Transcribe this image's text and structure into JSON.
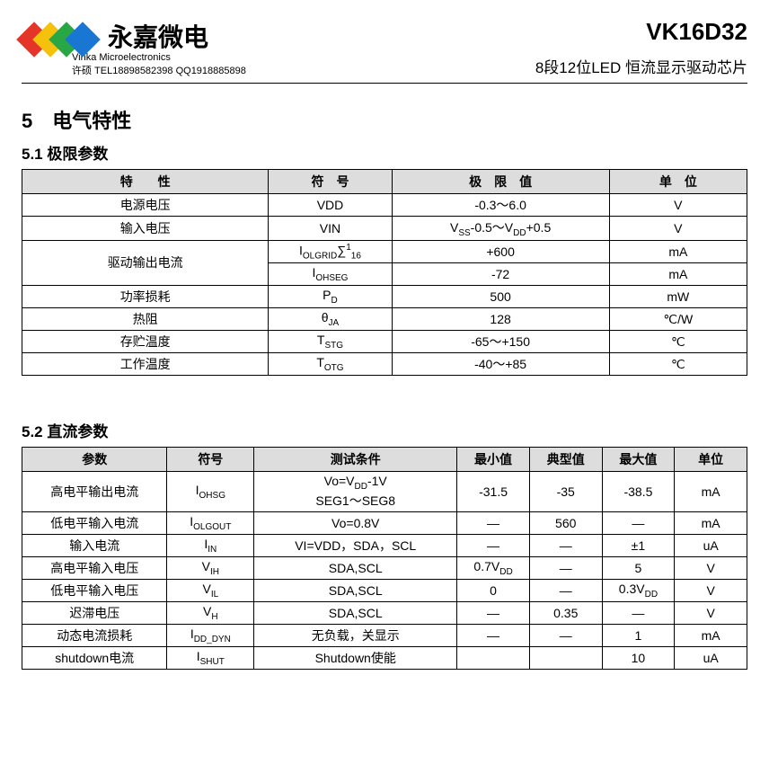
{
  "header": {
    "logo_colors": [
      "#e53528",
      "#f4c20d",
      "#29a745",
      "#1976d2"
    ],
    "company_cn": "永嘉微电",
    "company_en": "Vinka Microelectronics",
    "contact": "许硕 TEL18898582398  QQ1918885898",
    "part_number": "VK16D32",
    "subtitle": "8段12位LED 恒流显示驱动芯片"
  },
  "section5": {
    "title": "5　电气特性",
    "sub51": {
      "title": "5.1 极限参数",
      "table": {
        "headers": [
          "特　　性",
          "符　号",
          "极　限　值",
          "单　位"
        ],
        "header_bg": "#dddddd",
        "rows": [
          {
            "feature": "电源电压",
            "symbol_html": "VDD",
            "limit_html": "-0.3～6.0",
            "unit": "V"
          },
          {
            "feature": "输入电压",
            "symbol_html": "VIN",
            "limit_html": "V<sub>SS</sub>-0.5～V<sub>DD</sub>+0.5",
            "unit": "V"
          },
          {
            "feature": "驱动输出电流",
            "rowspan": 2,
            "cells": [
              {
                "symbol_html": "I<sub>OLGRID</sub>∑<sup>1</sup><sub>16</sub>",
                "limit_html": "+600",
                "unit": "mA"
              },
              {
                "symbol_html": "I<sub>OHSEG</sub>",
                "limit_html": "-72",
                "unit": "mA"
              }
            ]
          },
          {
            "feature": "功率损耗",
            "symbol_html": "P<sub>D</sub>",
            "limit_html": "500",
            "unit": "mW"
          },
          {
            "feature": "热阻",
            "symbol_html": "θ<sub>JA</sub>",
            "limit_html": "128",
            "unit": "℃/W"
          },
          {
            "feature": "存贮温度",
            "symbol_html": "T<sub>STG</sub>",
            "limit_html": "-65～+150",
            "unit": "℃"
          },
          {
            "feature": "工作温度",
            "symbol_html": "T<sub>OTG</sub>",
            "limit_html": "-40～+85",
            "unit": "℃"
          }
        ]
      }
    },
    "sub52": {
      "title": "5.2 直流参数",
      "table": {
        "headers": [
          "参数",
          "符号",
          "测试条件",
          "最小值",
          "典型值",
          "最大值",
          "单位"
        ],
        "header_bg": "#dddddd",
        "rows": [
          {
            "param": "高电平输出电流",
            "symbol_html": "I<sub>OHSG</sub>",
            "cond_html": "Vo=V<sub>DD</sub>-1V<br>SEG1～SEG8",
            "min": "-31.5",
            "typ": "-35",
            "max": "-38.5",
            "unit": "mA"
          },
          {
            "param": "低电平输入电流",
            "symbol_html": "I<sub>OLGOUT</sub>",
            "cond_html": "Vo=0.8V",
            "min": "—",
            "typ": "560",
            "max": "—",
            "unit": "mA"
          },
          {
            "param": "输入电流",
            "symbol_html": "I<sub>IN</sub>",
            "cond_html": "VI=VDD，SDA，SCL",
            "min": "—",
            "typ": "—",
            "max": "±1",
            "unit": "uA"
          },
          {
            "param": "高电平输入电压",
            "symbol_html": "V<sub>IH</sub>",
            "cond_html": "SDA,SCL",
            "min_html": "0.7V<sub>DD</sub>",
            "typ": "—",
            "max": "5",
            "unit": "V"
          },
          {
            "param": "低电平输入电压",
            "symbol_html": "V<sub>IL</sub>",
            "cond_html": "SDA,SCL",
            "min": "0",
            "typ": "—",
            "max_html": "0.3V<sub>DD</sub>",
            "unit": "V"
          },
          {
            "param": "迟滞电压",
            "symbol_html": "V<sub>H</sub>",
            "cond_html": "SDA,SCL",
            "min": "—",
            "typ": "0.35",
            "max": "—",
            "unit": "V"
          },
          {
            "param": "动态电流损耗",
            "symbol_html": "I<sub>DD_DYN</sub>",
            "cond_html": "无负载，关显示",
            "min": "—",
            "typ": "—",
            "max": "1",
            "unit": "mA"
          },
          {
            "param": "shutdown电流",
            "symbol_html": "I<sub>SHUT</sub>",
            "cond_html": "Shutdown使能",
            "min": "",
            "typ": "",
            "max": "10",
            "unit": "uA"
          }
        ]
      }
    }
  }
}
